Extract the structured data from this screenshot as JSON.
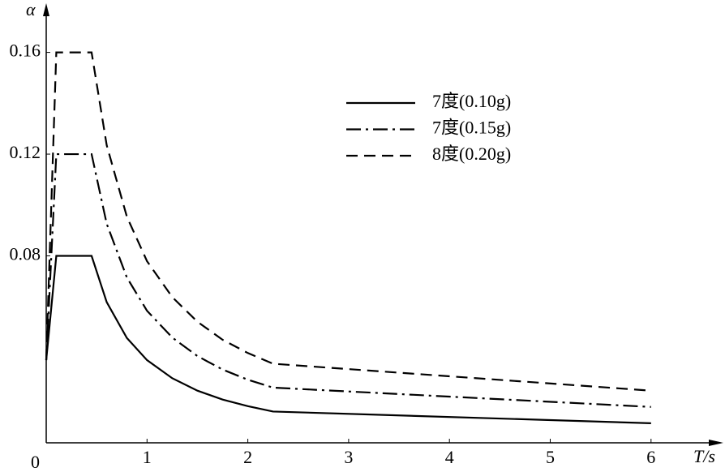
{
  "chart_data": {
    "type": "line",
    "y_label": "α",
    "x_label": "T/s",
    "origin_label": "0",
    "x": [
      0,
      0.1,
      0.45,
      0.6,
      0.8,
      1.0,
      1.25,
      1.5,
      1.75,
      2.0,
      2.25,
      6
    ],
    "series": [
      {
        "name": "7度(0.10g)",
        "color": "#000000",
        "dash": "solid",
        "values": [
          0.039,
          0.08,
          0.08,
          0.0618,
          0.0477,
          0.039,
          0.0319,
          0.027,
          0.0235,
          0.0209,
          0.0188,
          0.0142
        ]
      },
      {
        "name": "7度(0.15g)",
        "color": "#000000",
        "dash": "dashdot",
        "values": [
          0.039,
          0.12,
          0.12,
          0.0926,
          0.0715,
          0.0584,
          0.0479,
          0.0406,
          0.0353,
          0.0313,
          0.0282,
          0.0206
        ]
      },
      {
        "name": "8度(0.20g)",
        "color": "#000000",
        "dash": "dashed",
        "values": [
          0.039,
          0.16,
          0.16,
          0.1235,
          0.0954,
          0.0779,
          0.0638,
          0.0541,
          0.047,
          0.0418,
          0.0376,
          0.027
        ]
      }
    ],
    "xlim": [
      0,
      6.7
    ],
    "ylim": [
      0.0065,
      0.179
    ],
    "xticks": [
      1,
      2,
      3,
      4,
      5,
      6
    ],
    "yticks": [
      0.08,
      0.12,
      0.16
    ],
    "legend": "upper-center"
  }
}
